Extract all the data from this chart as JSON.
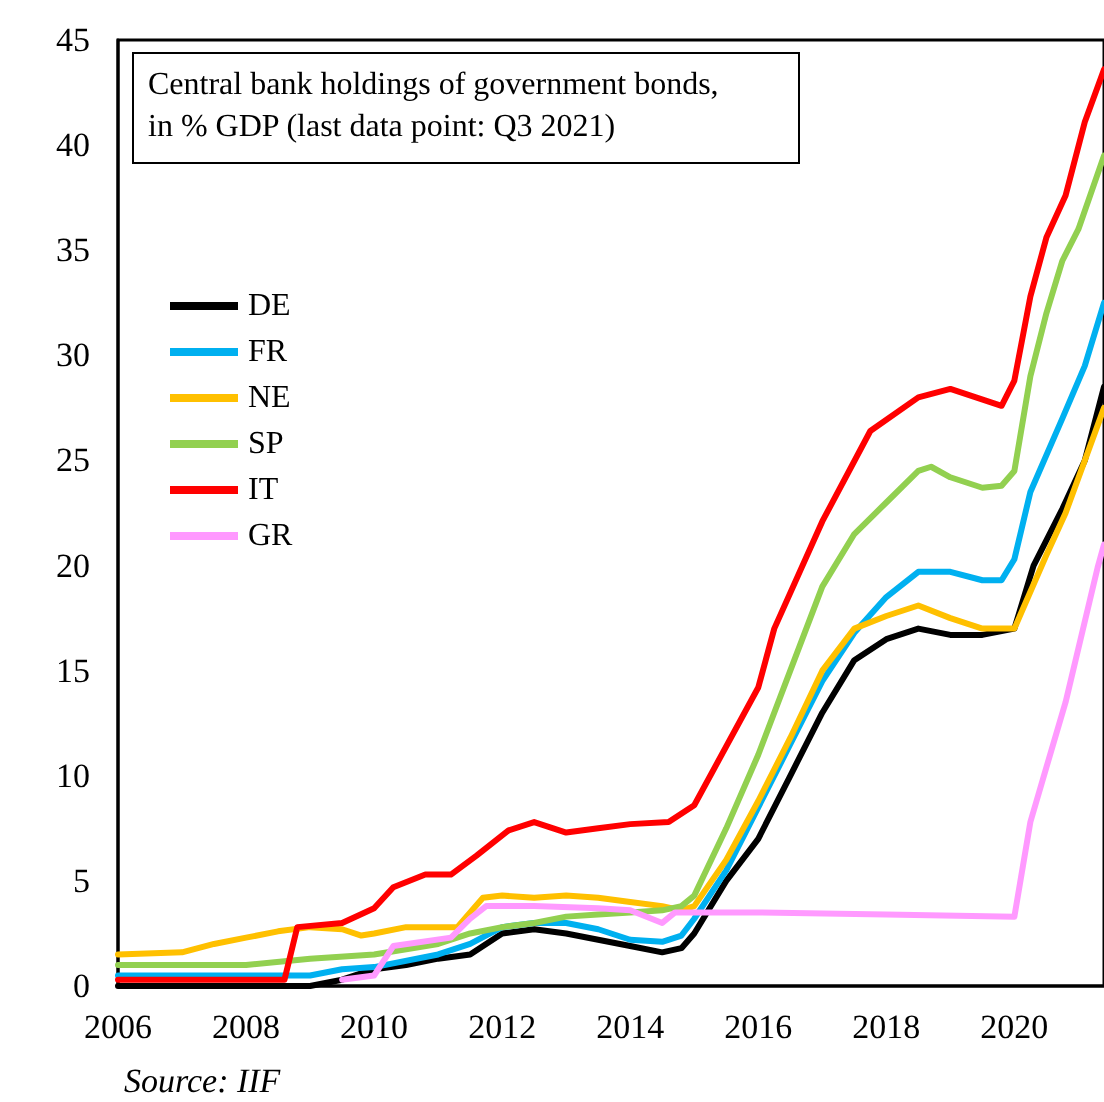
{
  "chart_data": {
    "type": "line",
    "title": "Central bank holdings of government bonds,\nin % GDP (last data point: Q3 2021)",
    "annotations": [
      "Source: IIF"
    ],
    "xlim": [
      2006,
      2021.4
    ],
    "xticks": [
      2006,
      2008,
      2010,
      2012,
      2014,
      2016,
      2018,
      2020
    ],
    "ylim": [
      0,
      45
    ],
    "yticks": [
      0,
      5,
      10,
      15,
      20,
      25,
      30,
      35,
      40,
      45
    ],
    "grid": false,
    "legend": "left",
    "marker": "none",
    "line_style": "solid",
    "series": [
      {
        "name": "DE",
        "color": "#000000",
        "x": [
          2006,
          2009,
          2009.5,
          2010,
          2010.5,
          2011,
          2011.5,
          2012,
          2012.5,
          2013,
          2013.5,
          2014,
          2014.5,
          2014.8,
          2015,
          2015.5,
          2016,
          2016.5,
          2017,
          2017.5,
          2018,
          2018.5,
          2019,
          2019.5,
          2020,
          2020.3,
          2020.75,
          2021.1,
          2021.4
        ],
        "values": [
          0,
          0,
          0.3,
          0.8,
          1.0,
          1.3,
          1.5,
          2.5,
          2.7,
          2.5,
          2.2,
          1.9,
          1.6,
          1.8,
          2.5,
          5.0,
          7.0,
          10,
          13,
          15.5,
          16.5,
          17,
          16.7,
          16.7,
          17,
          20,
          22.7,
          25,
          28.5
        ]
      },
      {
        "name": "FR",
        "color": "#00b0f0",
        "x": [
          2006,
          2009,
          2009.5,
          2010,
          2011,
          2011.5,
          2012,
          2012.5,
          2013,
          2013.5,
          2014,
          2014.5,
          2014.8,
          2015,
          2015.5,
          2016,
          2016.5,
          2017,
          2017.5,
          2018,
          2018.5,
          2019,
          2019.5,
          2019.8,
          2020,
          2020.25,
          2020.75,
          2021.1,
          2021.4
        ],
        "values": [
          0.5,
          0.5,
          0.8,
          0.9,
          1.5,
          2.0,
          2.8,
          3.0,
          3.0,
          2.7,
          2.2,
          2.1,
          2.4,
          3.2,
          5.5,
          8.5,
          11.5,
          14.5,
          16.8,
          18.5,
          19.7,
          19.7,
          19.3,
          19.3,
          20.3,
          23.5,
          27,
          29.5,
          32.5
        ]
      },
      {
        "name": "NE",
        "color": "#ffc000",
        "x": [
          2006,
          2007,
          2007.5,
          2008,
          2008.5,
          2009,
          2009.5,
          2009.8,
          2010,
          2010.5,
          2011,
          2011.3,
          2011.7,
          2012,
          2012.5,
          2013,
          2013.5,
          2014,
          2014.5,
          2014.8,
          2015,
          2015.5,
          2016,
          2016.5,
          2017,
          2017.5,
          2018,
          2018.5,
          2019,
          2019.5,
          2020,
          2020.5,
          2020.8,
          2021.1,
          2021.4
        ],
        "values": [
          1.5,
          1.6,
          2.0,
          2.3,
          2.6,
          2.8,
          2.7,
          2.4,
          2.5,
          2.8,
          2.8,
          2.8,
          4.2,
          4.3,
          4.2,
          4.3,
          4.2,
          4.0,
          3.8,
          3.6,
          3.8,
          6,
          8.8,
          11.8,
          15,
          17,
          17.6,
          18.1,
          17.5,
          17.0,
          17.0,
          20.5,
          22.5,
          25,
          27.5
        ]
      },
      {
        "name": "SP",
        "color": "#92d050",
        "x": [
          2006,
          2008,
          2009,
          2010,
          2011,
          2011.5,
          2012,
          2012.5,
          2013,
          2013.5,
          2014,
          2014.5,
          2014.8,
          2015,
          2015.5,
          2016,
          2016.5,
          2017,
          2017.5,
          2018,
          2018.5,
          2018.7,
          2019,
          2019.5,
          2019.8,
          2020,
          2020.25,
          2020.5,
          2020.75,
          2021,
          2021.4
        ],
        "values": [
          1.0,
          1.0,
          1.3,
          1.5,
          2.0,
          2.5,
          2.8,
          3.0,
          3.3,
          3.4,
          3.5,
          3.6,
          3.8,
          4.3,
          7.5,
          11,
          15,
          19,
          21.5,
          23,
          24.5,
          24.7,
          24.2,
          23.7,
          23.8,
          24.5,
          29,
          32,
          34.5,
          36,
          39.5
        ]
      },
      {
        "name": "IT",
        "color": "#ff0000",
        "x": [
          2006,
          2008.6,
          2008.8,
          2009.5,
          2010,
          2010.3,
          2010.8,
          2011.2,
          2011.6,
          2012.1,
          2012.5,
          2013,
          2013.5,
          2014,
          2014.6,
          2015,
          2016,
          2016.25,
          2017,
          2017.75,
          2018.5,
          2019,
          2019.8,
          2020,
          2020.25,
          2020.5,
          2020.8,
          2021.1,
          2021.4
        ],
        "values": [
          0.3,
          0.3,
          2.8,
          3.0,
          3.7,
          4.7,
          5.3,
          5.3,
          6.2,
          7.4,
          7.8,
          7.3,
          7.5,
          7.7,
          7.8,
          8.6,
          14.2,
          17,
          22.1,
          26.4,
          28,
          28.4,
          27.6,
          28.8,
          32.8,
          35.6,
          37.6,
          41.1,
          43.6
        ]
      },
      {
        "name": "GR",
        "color": "#ff99ff",
        "x": [
          2009.5,
          2010,
          2010.3,
          2011.2,
          2011.5,
          2011.75,
          2012.5,
          2013.5,
          2014,
          2014.5,
          2014.7,
          2016,
          2018,
          2020,
          2020.25,
          2020.5,
          2020.8,
          2021.3,
          2021.4
        ],
        "values": [
          0.3,
          0.5,
          1.9,
          2.3,
          3.2,
          3.8,
          3.8,
          3.7,
          3.6,
          3.0,
          3.5,
          3.5,
          3.4,
          3.3,
          7.8,
          10.4,
          13.5,
          19.9,
          21
        ]
      }
    ]
  }
}
